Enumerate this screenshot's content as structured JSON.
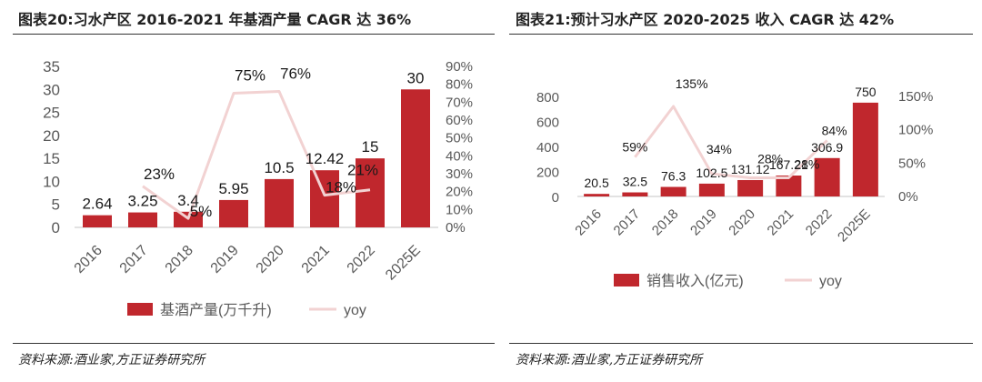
{
  "charts": [
    {
      "title": "图表20:习水产区 2016-2021 年基酒产量 CAGR 达 36%",
      "source": "资料来源:酒业家,方正证券研究所"
    },
    {
      "title": "图表21:预计习水产区 2020-2025 收入 CAGR 达 42%",
      "source": "资料来源:酒业家,方正证券研究所"
    }
  ],
  "colors": {
    "bar": "#c0272d",
    "line": "#f2d2d2",
    "axis": "#d9d9d9",
    "text": "#595959"
  },
  "chart_data": [
    {
      "type": "bar",
      "title": "图表20:习水产区 2016-2021 年基酒产量 CAGR 达 36%",
      "categories": [
        "2016",
        "2017",
        "2018",
        "2019",
        "2020",
        "2021",
        "2022",
        "2025E"
      ],
      "series": [
        {
          "name": "基酒产量(万千升)",
          "type": "bar",
          "axis": "left",
          "values": [
            2.64,
            3.25,
            3.4,
            5.95,
            10.5,
            12.42,
            15,
            30
          ],
          "labels": [
            "2.64",
            "3.25",
            "3.4",
            "5.95",
            "10.5",
            "12.42",
            "15",
            "30"
          ]
        },
        {
          "name": "yoy",
          "type": "line",
          "axis": "right",
          "values": [
            null,
            23,
            5,
            75,
            76,
            18,
            21,
            null
          ],
          "labels": [
            "",
            "23%",
            "5%",
            "75%",
            "76%",
            "18%",
            "21%",
            ""
          ]
        }
      ],
      "left_axis": {
        "ylim": [
          0,
          35
        ],
        "ticks": [
          0,
          5,
          10,
          15,
          20,
          25,
          30,
          35
        ],
        "tick_labels": [
          "0",
          "5",
          "10",
          "15",
          "20",
          "25",
          "30",
          "35"
        ]
      },
      "right_axis": {
        "ylim": [
          0,
          90
        ],
        "ticks": [
          0,
          10,
          20,
          30,
          40,
          50,
          60,
          70,
          80,
          90
        ],
        "tick_labels": [
          "0%",
          "10%",
          "20%",
          "30%",
          "40%",
          "50%",
          "60%",
          "70%",
          "80%",
          "90%"
        ]
      },
      "legend": {
        "position": "bottom",
        "entries": [
          "基酒产量(万千升)",
          "yoy"
        ]
      }
    },
    {
      "type": "bar",
      "title": "图表21:预计习水产区 2020-2025 收入 CAGR 达 42%",
      "categories": [
        "2016",
        "2017",
        "2018",
        "2019",
        "2020",
        "2021",
        "2022",
        "2025E"
      ],
      "series": [
        {
          "name": "销售收入(亿元)",
          "type": "bar",
          "axis": "left",
          "values": [
            20.5,
            32.5,
            76.3,
            102.5,
            131.12,
            167.21,
            306.9,
            750
          ],
          "labels": [
            "20.5",
            "32.5",
            "76.3",
            "102.5",
            "131.12",
            "167.21",
            "306.9",
            "750"
          ]
        },
        {
          "name": "yoy",
          "type": "line",
          "axis": "right",
          "values": [
            null,
            59,
            135,
            34,
            28,
            28,
            84,
            null
          ],
          "labels": [
            "",
            "59%",
            "135%",
            "34%",
            "28%",
            "28%",
            "84%",
            ""
          ]
        }
      ],
      "left_axis": {
        "ylim": [
          0,
          800
        ],
        "ticks": [
          0,
          200,
          400,
          600,
          800
        ],
        "tick_labels": [
          "0",
          "200",
          "400",
          "600",
          "800"
        ]
      },
      "right_axis": {
        "ylim": [
          0,
          150
        ],
        "ticks": [
          0,
          50,
          100,
          150
        ],
        "tick_labels": [
          "0%",
          "50%",
          "100%",
          "150%"
        ]
      },
      "legend": {
        "position": "bottom",
        "entries": [
          "销售收入(亿元)",
          "yoy"
        ]
      }
    }
  ]
}
